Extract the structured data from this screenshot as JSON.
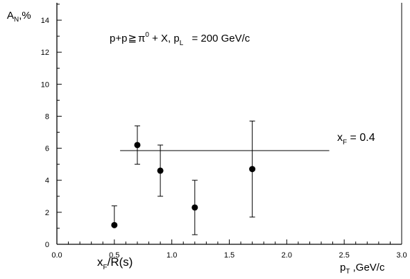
{
  "chart_data": {
    "type": "scatter",
    "title": "",
    "xlim": [
      0.0,
      3.0
    ],
    "ylim": [
      0,
      15
    ],
    "x_ticks": [
      "0.0",
      "0.5",
      "1.0",
      "1.5",
      "2.0",
      "2.5",
      "3.0"
    ],
    "y_ticks": [
      "0",
      "2",
      "4",
      "6",
      "8",
      "10",
      "12",
      "14"
    ],
    "ylabel": {
      "main": "A",
      "sub": "N",
      "rest": ",%"
    },
    "xlabel": {
      "main": "p",
      "sub": "T",
      "rest": " ,GeV/c"
    },
    "grid": false,
    "series": [
      {
        "points": [
          {
            "x": 0.5,
            "y": 1.2,
            "yerr_low": 1.2,
            "yerr_high": 2.4
          },
          {
            "x": 0.7,
            "y": 6.2,
            "yerr_low": 5.0,
            "yerr_high": 7.4
          },
          {
            "x": 0.9,
            "y": 4.6,
            "yerr_low": 3.0,
            "yerr_high": 6.2
          },
          {
            "x": 1.2,
            "y": 2.3,
            "yerr_low": 0.6,
            "yerr_high": 4.0
          },
          {
            "x": 1.7,
            "y": 4.7,
            "yerr_low": 1.7,
            "yerr_high": 7.7
          }
        ]
      }
    ],
    "reference_line": {
      "y": 5.85,
      "x_from": 0.55,
      "x_to": 2.37
    },
    "annotations": {
      "reaction": {
        "p1": "p+p",
        "pi": "π",
        "pi_sup": "0",
        "rest": " + X, p",
        "pl_sub": "L",
        "energy": " = 200 GeV/c"
      },
      "xf_value": {
        "main": "x",
        "sub": "F",
        "rest": " = 0.4"
      },
      "xf_scaling": {
        "main": "x",
        "sub": "F",
        "rest": "/R(s)"
      }
    }
  }
}
